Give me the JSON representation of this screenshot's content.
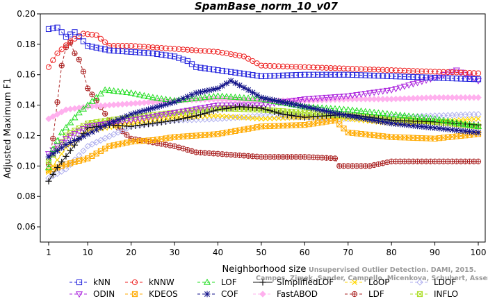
{
  "chart_data": {
    "type": "line",
    "title": "SpamBase_norm_10_v07",
    "xlabel": "Neighborhood size",
    "ylabel": "Adjusted Maximum F1",
    "xlim": [
      1,
      100
    ],
    "ylim": [
      0.05,
      0.2
    ],
    "xticks": [
      "1",
      "10",
      "20",
      "30",
      "40",
      "50",
      "60",
      "70",
      "80",
      "90",
      "100"
    ],
    "yticks": [
      "0.06",
      "0.08",
      "0.10",
      "0.12",
      "0.14",
      "0.16",
      "0.18",
      "0.20"
    ],
    "grid": false,
    "legend_position": "bottom",
    "watermark": [
      "Unsupervised Outlier Detection. DAMI, 2015.",
      "Campos, Zimek, Sander, Campello, Micenkova, Schubert, Assent, Houle"
    ],
    "series": [
      {
        "name": "kNN",
        "color": "#2222dd",
        "marker": "square",
        "dashed": true,
        "x": [
          1,
          3,
          5,
          7,
          10,
          15,
          20,
          25,
          30,
          33,
          35,
          40,
          45,
          50,
          60,
          70,
          80,
          90,
          100
        ],
        "y": [
          0.19,
          0.191,
          0.185,
          0.188,
          0.179,
          0.176,
          0.175,
          0.174,
          0.172,
          0.169,
          0.165,
          0.163,
          0.161,
          0.159,
          0.16,
          0.16,
          0.159,
          0.158,
          0.157
        ]
      },
      {
        "name": "kNNW",
        "color": "#ee2222",
        "marker": "circle",
        "dashed": true,
        "x": [
          1,
          3,
          6,
          9,
          12,
          15,
          20,
          25,
          30,
          40,
          46,
          50,
          60,
          70,
          80,
          90,
          100
        ],
        "y": [
          0.165,
          0.174,
          0.182,
          0.187,
          0.186,
          0.179,
          0.179,
          0.178,
          0.177,
          0.175,
          0.172,
          0.166,
          0.165,
          0.164,
          0.163,
          0.162,
          0.161
        ]
      },
      {
        "name": "LOF",
        "color": "#22dd22",
        "marker": "triangle",
        "dashed": true,
        "x": [
          1,
          2,
          4,
          8,
          10,
          14,
          20,
          25,
          30,
          40,
          50,
          60,
          70,
          80,
          90,
          100
        ],
        "y": [
          0.099,
          0.111,
          0.122,
          0.135,
          0.14,
          0.15,
          0.148,
          0.145,
          0.143,
          0.146,
          0.144,
          0.139,
          0.137,
          0.134,
          0.131,
          0.126
        ]
      },
      {
        "name": "SimplifiedLOF",
        "color": "#111111",
        "marker": "plus",
        "dashed": false,
        "x": [
          1,
          3,
          6,
          10,
          15,
          20,
          25,
          30,
          35,
          40,
          45,
          50,
          55,
          60,
          70,
          80,
          90,
          100
        ],
        "y": [
          0.09,
          0.099,
          0.11,
          0.125,
          0.127,
          0.126,
          0.128,
          0.13,
          0.133,
          0.137,
          0.139,
          0.138,
          0.134,
          0.132,
          0.134,
          0.13,
          0.129,
          0.127
        ]
      },
      {
        "name": "LoOP",
        "color": "#ffd700",
        "marker": "cross",
        "dashed": true,
        "x": [
          1,
          5,
          10,
          20,
          30,
          40,
          50,
          60,
          70,
          80,
          90,
          100
        ],
        "y": [
          0.096,
          0.112,
          0.123,
          0.128,
          0.132,
          0.133,
          0.131,
          0.132,
          0.131,
          0.128,
          0.129,
          0.131
        ]
      },
      {
        "name": "LDOF",
        "color": "#b0b0ee",
        "marker": "diamond",
        "dashed": true,
        "x": [
          1,
          5,
          10,
          20,
          30,
          40,
          50,
          60,
          70,
          80,
          90,
          100
        ],
        "y": [
          0.092,
          0.098,
          0.113,
          0.126,
          0.13,
          0.131,
          0.133,
          0.132,
          0.131,
          0.132,
          0.133,
          0.134
        ]
      },
      {
        "name": "ODIN",
        "color": "#aa22dd",
        "marker": "triangle-down",
        "dashed": true,
        "x": [
          1,
          5,
          10,
          20,
          30,
          40,
          50,
          60,
          70,
          80,
          90,
          95,
          100
        ],
        "y": [
          0.108,
          0.118,
          0.126,
          0.13,
          0.135,
          0.14,
          0.14,
          0.144,
          0.146,
          0.15,
          0.158,
          0.163,
          0.156
        ]
      },
      {
        "name": "KDEOS",
        "color": "#ffaa00",
        "marker": "square-x",
        "dashed": true,
        "x": [
          1,
          5,
          10,
          15,
          20,
          25,
          30,
          40,
          50,
          60,
          67,
          70,
          80,
          90,
          100
        ],
        "y": [
          0.097,
          0.101,
          0.105,
          0.113,
          0.116,
          0.117,
          0.119,
          0.121,
          0.126,
          0.127,
          0.13,
          0.122,
          0.119,
          0.118,
          0.121
        ]
      },
      {
        "name": "COF",
        "color": "#111188",
        "marker": "star",
        "dashed": true,
        "x": [
          1,
          5,
          10,
          15,
          20,
          25,
          30,
          35,
          40,
          43,
          47,
          50,
          60,
          70,
          80,
          90,
          100
        ],
        "y": [
          0.106,
          0.114,
          0.121,
          0.128,
          0.134,
          0.138,
          0.142,
          0.148,
          0.151,
          0.156,
          0.15,
          0.145,
          0.139,
          0.133,
          0.128,
          0.125,
          0.122
        ]
      },
      {
        "name": "FastABOD",
        "color": "#ffb0ee",
        "marker": "diamond-filled",
        "dashed": true,
        "x": [
          1,
          5,
          10,
          20,
          30,
          40,
          50,
          60,
          70,
          80,
          90,
          100
        ],
        "y": [
          0.131,
          0.137,
          0.139,
          0.141,
          0.143,
          0.144,
          0.143,
          0.143,
          0.144,
          0.144,
          0.145,
          0.145
        ]
      },
      {
        "name": "LDF",
        "color": "#aa2222",
        "marker": "circle-plus",
        "dashed": true,
        "x": [
          1,
          2,
          3,
          4,
          5,
          6,
          7,
          8,
          9,
          10,
          12,
          15,
          20,
          30,
          35,
          40,
          50,
          60,
          67,
          68,
          75,
          80,
          90,
          100
        ],
        "y": [
          0.101,
          0.118,
          0.142,
          0.166,
          0.178,
          0.181,
          0.174,
          0.17,
          0.162,
          0.151,
          0.143,
          0.13,
          0.118,
          0.113,
          0.109,
          0.108,
          0.106,
          0.106,
          0.105,
          0.1,
          0.1,
          0.103,
          0.103,
          0.103
        ]
      },
      {
        "name": "INFLO",
        "color": "#aadd22",
        "marker": "square-x",
        "dashed": true,
        "x": [
          1,
          5,
          10,
          20,
          30,
          40,
          50,
          60,
          70,
          80,
          90,
          100
        ],
        "y": [
          0.103,
          0.12,
          0.128,
          0.132,
          0.135,
          0.138,
          0.137,
          0.135,
          0.133,
          0.131,
          0.129,
          0.126
        ]
      }
    ]
  }
}
